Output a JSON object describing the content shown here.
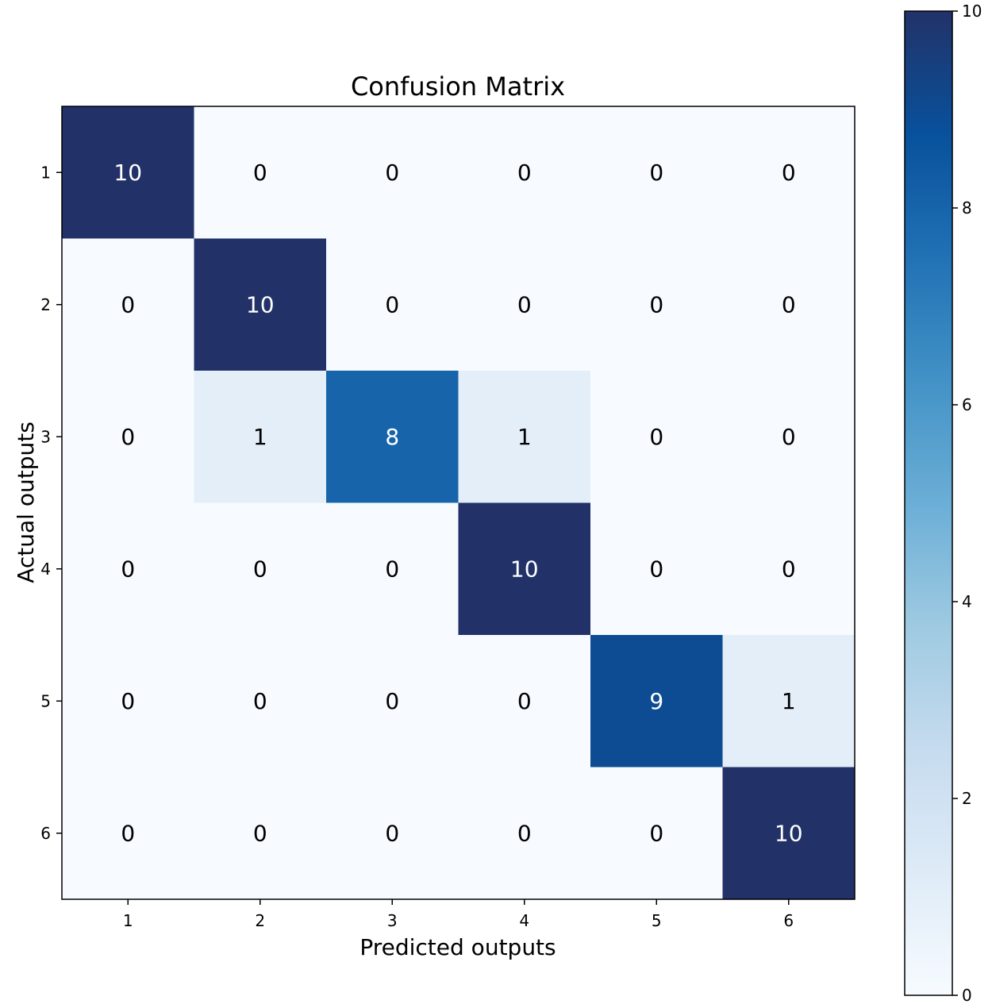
{
  "chart_data": {
    "type": "heatmap",
    "title": "Confusion Matrix",
    "xlabel": "Predicted outputs",
    "ylabel": "Actual outputs",
    "x_categories": [
      "1",
      "2",
      "3",
      "4",
      "5",
      "6"
    ],
    "y_categories": [
      "1",
      "2",
      "3",
      "4",
      "5",
      "6"
    ],
    "values": [
      [
        10,
        0,
        0,
        0,
        0,
        0
      ],
      [
        0,
        10,
        0,
        0,
        0,
        0
      ],
      [
        0,
        1,
        8,
        1,
        0,
        0
      ],
      [
        0,
        0,
        0,
        10,
        0,
        0
      ],
      [
        0,
        0,
        0,
        0,
        9,
        1
      ],
      [
        0,
        0,
        0,
        0,
        0,
        10
      ]
    ],
    "value_range": [
      0,
      10
    ],
    "colormap": "Blues",
    "colorbar": {
      "ticks": [
        0,
        2,
        4,
        6,
        8,
        10
      ],
      "placement": "right"
    },
    "grid": false
  }
}
